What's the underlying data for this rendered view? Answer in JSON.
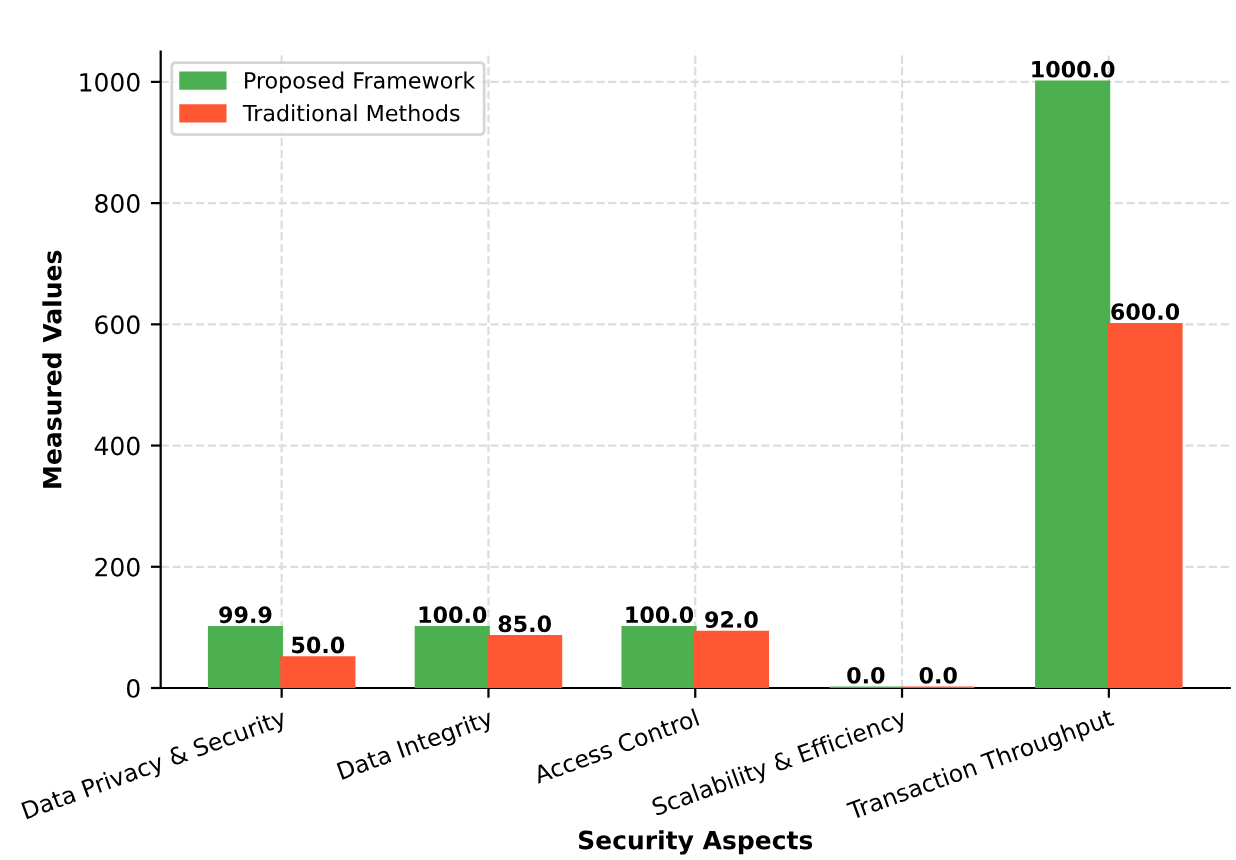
{
  "chart_data": {
    "type": "bar",
    "xlabel": "Security Aspects",
    "ylabel": "Measured Values",
    "categories": [
      "Data Privacy & Security",
      "Data Integrity",
      "Access Control",
      "Scalability & Efficiency",
      "Transaction Throughput"
    ],
    "series": [
      {
        "name": "Proposed Framework",
        "color": "#4caf50",
        "values": [
          99.9,
          100.0,
          100.0,
          0.0,
          1000.0
        ],
        "value_labels": [
          "99.9",
          "100.0",
          "100.0",
          "0.0",
          "1000.0"
        ]
      },
      {
        "name": "Traditional Methods",
        "color": "#ff5733",
        "values": [
          50.0,
          85.0,
          92.0,
          0.0,
          600.0
        ],
        "value_labels": [
          "50.0",
          "85.0",
          "92.0",
          "0.0",
          "600.0"
        ]
      }
    ],
    "ylim": [
      0,
      1050
    ],
    "yticks": [
      0,
      200,
      400,
      600,
      800,
      1000
    ],
    "grid": true,
    "legend": "top left"
  }
}
